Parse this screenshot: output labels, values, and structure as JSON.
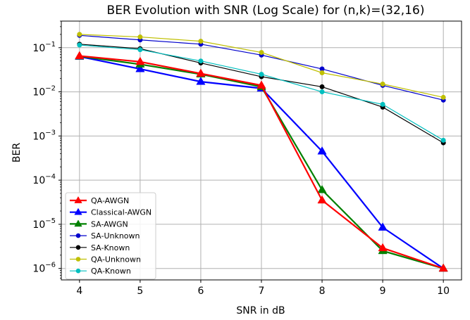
{
  "chart_data": {
    "type": "line",
    "title": "BER Evolution with SNR (Log Scale) for (n,k)=(32,16)",
    "xlabel": "SNR in dB",
    "ylabel": "BER",
    "yscale": "log",
    "xlim": [
      3.7,
      10.3
    ],
    "ylim": [
      5.5e-07,
      0.4
    ],
    "grid": true,
    "legend_position": "lower-left",
    "x_ticks": [
      4,
      5,
      6,
      7,
      8,
      9,
      10
    ],
    "y_ticks": [
      {
        "base": "10",
        "exp": "−6",
        "value": 1e-06
      },
      {
        "base": "10",
        "exp": "−5",
        "value": 1e-05
      },
      {
        "base": "10",
        "exp": "−4",
        "value": 0.0001
      },
      {
        "base": "10",
        "exp": "−3",
        "value": 0.001
      },
      {
        "base": "10",
        "exp": "−2",
        "value": 0.01
      },
      {
        "base": "10",
        "exp": "−1",
        "value": 0.1
      }
    ],
    "x": [
      4,
      5,
      6,
      7,
      8,
      9,
      10
    ],
    "series": [
      {
        "name": "QA-AWGN",
        "color": "#ff0000",
        "marker": "triangle",
        "width": 2.2,
        "values": [
          0.065,
          0.048,
          0.026,
          0.014,
          3.5e-05,
          2.9e-06,
          1e-06
        ]
      },
      {
        "name": "Classical-AWGN",
        "color": "#0000ff",
        "marker": "triangle",
        "width": 2.2,
        "values": [
          0.063,
          0.033,
          0.017,
          0.012,
          0.00045,
          8.5e-06,
          1e-06
        ]
      },
      {
        "name": "SA-AWGN",
        "color": "#008000",
        "marker": "triangle",
        "width": 2.2,
        "values": [
          0.064,
          0.042,
          0.025,
          0.013,
          6e-05,
          2.5e-06,
          1e-06
        ]
      },
      {
        "name": "SA-Unknown",
        "color": "#0000cc",
        "marker": "circle",
        "width": 1.2,
        "values": [
          0.19,
          0.15,
          0.12,
          0.068,
          0.033,
          0.014,
          0.0065
        ]
      },
      {
        "name": "SA-Known",
        "color": "#000000",
        "marker": "circle",
        "width": 1.2,
        "values": [
          0.12,
          0.095,
          0.045,
          0.022,
          0.013,
          0.0045,
          0.0007
        ]
      },
      {
        "name": "QA-Unknown",
        "color": "#bfbf00",
        "marker": "circle",
        "width": 1.2,
        "values": [
          0.2,
          0.175,
          0.14,
          0.078,
          0.027,
          0.015,
          0.0075
        ]
      },
      {
        "name": "QA-Known",
        "color": "#00bfbf",
        "marker": "circle",
        "width": 1.2,
        "values": [
          0.115,
          0.09,
          0.05,
          0.025,
          0.01,
          0.0052,
          0.0008
        ]
      }
    ]
  }
}
